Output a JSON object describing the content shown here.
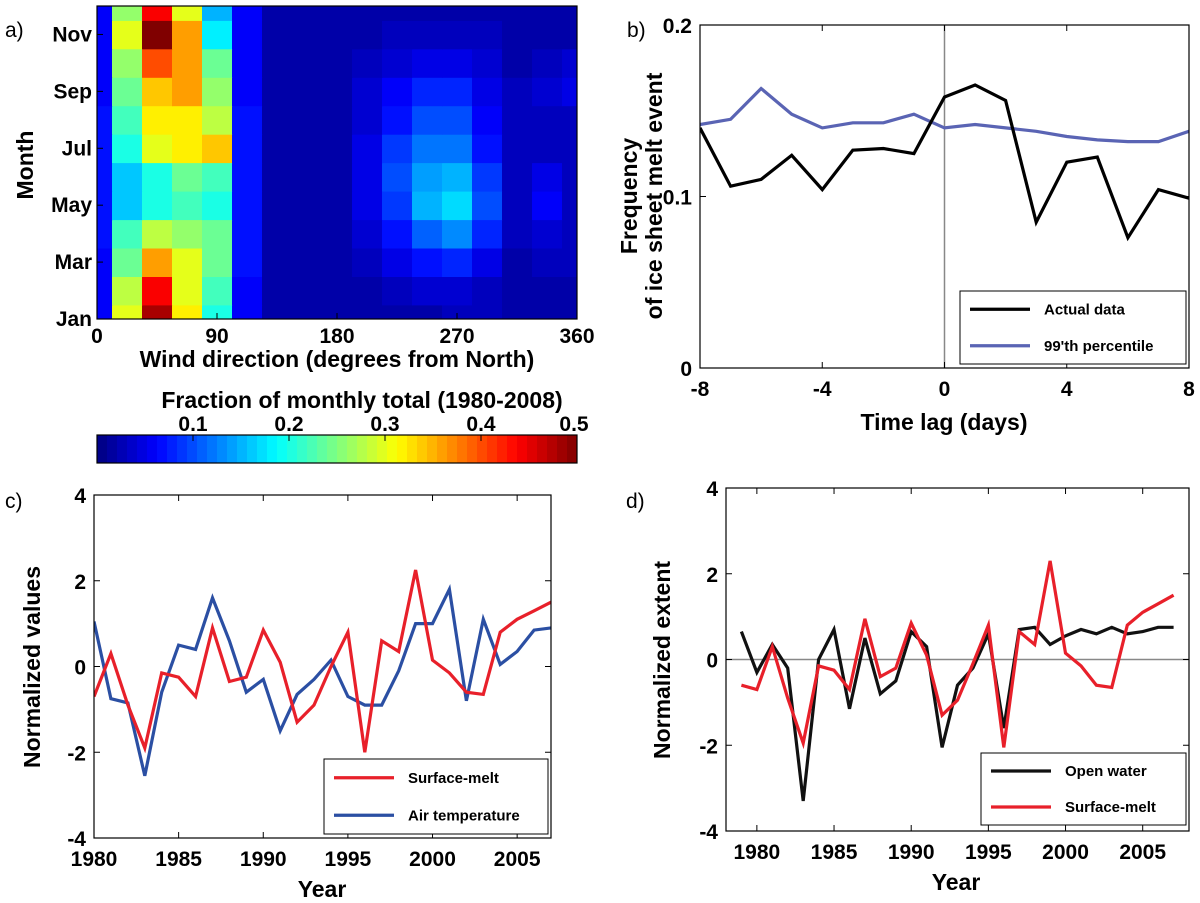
{
  "chart_data": [
    {
      "panel": "a)",
      "type": "heatmap",
      "xlabel": "Wind direction (degrees from North)",
      "ylabel": "Month",
      "xlim": [
        0,
        360
      ],
      "xticks": [
        "0",
        "90",
        "180",
        "270",
        "360"
      ],
      "yticks": [
        "Jan",
        "Mar",
        "May",
        "Jul",
        "Sep",
        "Nov"
      ],
      "colorbar": {
        "label": "Fraction of monthly total (1980-2008)",
        "range": [
          0,
          0.5
        ],
        "ticks": [
          "0.1",
          "0.2",
          "0.3",
          "0.4",
          "0.5"
        ]
      },
      "months": [
        "Jan",
        "Feb",
        "Mar",
        "Apr",
        "May",
        "Jun",
        "Jul",
        "Aug",
        "Sep",
        "Oct",
        "Nov",
        "Dec"
      ],
      "directions": [
        0,
        22.5,
        45,
        67.5,
        90,
        112.5,
        135,
        157.5,
        180,
        202.5,
        225,
        247.5,
        270,
        292.5,
        315,
        337.5,
        360
      ],
      "values": [
        [
          0.06,
          0.3,
          0.48,
          0.32,
          0.2,
          0.06,
          0.02,
          0.02,
          0.02,
          0.02,
          0.02,
          0.02,
          0.03,
          0.03,
          0.02,
          0.02,
          0.02
        ],
        [
          0.06,
          0.28,
          0.44,
          0.3,
          0.22,
          0.06,
          0.02,
          0.02,
          0.02,
          0.02,
          0.03,
          0.04,
          0.04,
          0.03,
          0.02,
          0.02,
          0.02
        ],
        [
          0.06,
          0.24,
          0.36,
          0.3,
          0.24,
          0.07,
          0.02,
          0.02,
          0.02,
          0.03,
          0.05,
          0.07,
          0.08,
          0.05,
          0.02,
          0.03,
          0.03
        ],
        [
          0.07,
          0.22,
          0.28,
          0.26,
          0.24,
          0.07,
          0.02,
          0.02,
          0.02,
          0.04,
          0.07,
          0.11,
          0.13,
          0.08,
          0.03,
          0.04,
          0.03
        ],
        [
          0.07,
          0.16,
          0.2,
          0.22,
          0.2,
          0.07,
          0.02,
          0.02,
          0.02,
          0.05,
          0.09,
          0.15,
          0.17,
          0.1,
          0.03,
          0.06,
          0.03
        ],
        [
          0.07,
          0.16,
          0.2,
          0.24,
          0.22,
          0.07,
          0.02,
          0.02,
          0.02,
          0.05,
          0.1,
          0.14,
          0.15,
          0.09,
          0.03,
          0.05,
          0.03
        ],
        [
          0.07,
          0.2,
          0.3,
          0.32,
          0.34,
          0.07,
          0.02,
          0.02,
          0.02,
          0.05,
          0.09,
          0.12,
          0.12,
          0.07,
          0.03,
          0.03,
          0.03
        ],
        [
          0.07,
          0.22,
          0.32,
          0.32,
          0.28,
          0.07,
          0.02,
          0.02,
          0.02,
          0.04,
          0.07,
          0.1,
          0.1,
          0.06,
          0.03,
          0.03,
          0.03
        ],
        [
          0.06,
          0.24,
          0.34,
          0.36,
          0.26,
          0.06,
          0.02,
          0.02,
          0.02,
          0.04,
          0.06,
          0.08,
          0.08,
          0.05,
          0.03,
          0.04,
          0.05
        ],
        [
          0.06,
          0.26,
          0.4,
          0.36,
          0.24,
          0.06,
          0.02,
          0.02,
          0.02,
          0.03,
          0.04,
          0.05,
          0.05,
          0.04,
          0.02,
          0.03,
          0.04
        ],
        [
          0.06,
          0.3,
          0.5,
          0.36,
          0.18,
          0.06,
          0.02,
          0.02,
          0.02,
          0.02,
          0.03,
          0.03,
          0.03,
          0.03,
          0.02,
          0.02,
          0.02
        ],
        [
          0.06,
          0.26,
          0.44,
          0.3,
          0.15,
          0.06,
          0.02,
          0.02,
          0.02,
          0.02,
          0.02,
          0.02,
          0.02,
          0.02,
          0.02,
          0.02,
          0.02
        ]
      ]
    },
    {
      "panel": "b)",
      "type": "line",
      "xlabel": "Time lag (days)",
      "ylabel": "Frequency of ice sheet melt event",
      "ylabel_lines": [
        "Frequency",
        "of ice sheet melt event"
      ],
      "xlim": [
        -8,
        8
      ],
      "ylim": [
        0,
        0.2
      ],
      "xticks": [
        "-8",
        "-4",
        "0",
        "4",
        "8"
      ],
      "yticks": [
        "0",
        "0.1",
        "0.2"
      ],
      "legend": "bottom-right",
      "x": [
        -8,
        -7,
        -6,
        -5,
        -4,
        -3,
        -2,
        -1,
        0,
        1,
        2,
        3,
        4,
        5,
        6,
        7,
        8
      ],
      "series": [
        {
          "name": "Actual data",
          "color": "#000000",
          "values": [
            0.14,
            0.106,
            0.11,
            0.124,
            0.104,
            0.127,
            0.128,
            0.125,
            0.158,
            0.165,
            0.156,
            0.085,
            0.12,
            0.123,
            0.076,
            0.104,
            0.099
          ]
        },
        {
          "name": "99'th percentile",
          "color": "#5a64b4",
          "values": [
            0.142,
            0.145,
            0.163,
            0.148,
            0.14,
            0.143,
            0.143,
            0.148,
            0.14,
            0.142,
            0.14,
            0.138,
            0.135,
            0.133,
            0.132,
            0.132,
            0.138
          ]
        }
      ]
    },
    {
      "panel": "c)",
      "type": "line",
      "xlabel": "Year",
      "ylabel": "Normalized values",
      "xlim": [
        1980,
        2007
      ],
      "ylim": [
        -4,
        4
      ],
      "xticks": [
        "1980",
        "1985",
        "1990",
        "1995",
        "2000",
        "2005"
      ],
      "yticks": [
        "-4",
        "-2",
        "0",
        "2",
        "4"
      ],
      "legend": "bottom-right",
      "x": [
        1980,
        1981,
        1982,
        1983,
        1984,
        1985,
        1986,
        1987,
        1988,
        1989,
        1990,
        1991,
        1992,
        1993,
        1994,
        1995,
        1996,
        1997,
        1998,
        1999,
        2000,
        2001,
        2002,
        2003,
        2004,
        2005,
        2006,
        2007
      ],
      "series": [
        {
          "name": "Surface-melt",
          "color": "#e8202a",
          "values": [
            -0.7,
            0.3,
            -0.9,
            -1.9,
            -0.15,
            -0.25,
            -0.7,
            0.9,
            -0.35,
            -0.25,
            0.85,
            0.1,
            -1.3,
            -0.9,
            0.0,
            0.8,
            -2.0,
            0.6,
            0.35,
            2.25,
            0.15,
            -0.15,
            -0.6,
            -0.65,
            0.8,
            1.1,
            1.3,
            1.5
          ]
        },
        {
          "name": "Air temperature",
          "color": "#2b4fa3",
          "values": [
            1.05,
            -0.75,
            -0.85,
            -2.55,
            -0.6,
            0.5,
            0.4,
            1.6,
            0.6,
            -0.6,
            -0.3,
            -1.5,
            -0.65,
            -0.3,
            0.15,
            -0.7,
            -0.9,
            -0.9,
            -0.1,
            1.0,
            1.0,
            1.8,
            -0.8,
            1.1,
            0.05,
            0.35,
            0.85,
            0.9
          ]
        }
      ]
    },
    {
      "panel": "d)",
      "type": "line",
      "xlabel": "Year",
      "ylabel": "Normalized extent",
      "xlim": [
        1978,
        2008
      ],
      "ylim": [
        -4,
        4
      ],
      "xticks": [
        "1980",
        "1985",
        "1990",
        "1995",
        "2000",
        "2005"
      ],
      "yticks": [
        "-4",
        "-2",
        "0",
        "2",
        "4"
      ],
      "legend": "bottom-right",
      "x": [
        1979,
        1980,
        1981,
        1982,
        1983,
        1984,
        1985,
        1986,
        1987,
        1988,
        1989,
        1990,
        1991,
        1992,
        1993,
        1994,
        1995,
        1996,
        1997,
        1998,
        1999,
        2000,
        2001,
        2002,
        2003,
        2004,
        2005,
        2006,
        2007
      ],
      "series": [
        {
          "name": "Open water",
          "color": "#111111",
          "values": [
            0.65,
            -0.3,
            0.35,
            -0.2,
            -3.3,
            0.0,
            0.7,
            -1.15,
            0.5,
            -0.8,
            -0.5,
            0.65,
            0.3,
            -2.05,
            -0.6,
            -0.2,
            0.6,
            -1.6,
            0.7,
            0.75,
            0.35,
            0.55,
            0.7,
            0.6,
            0.75,
            0.6,
            0.65,
            0.75,
            0.75
          ]
        },
        {
          "name": "Surface-melt",
          "color": "#e8202a",
          "values": [
            -0.6,
            -0.7,
            0.3,
            -0.9,
            -1.95,
            -0.15,
            -0.25,
            -0.7,
            0.95,
            -0.4,
            -0.2,
            0.85,
            0.1,
            -1.3,
            -0.95,
            -0.1,
            0.8,
            -2.05,
            0.65,
            0.35,
            2.3,
            0.15,
            -0.15,
            -0.6,
            -0.65,
            0.8,
            1.1,
            1.3,
            1.5
          ]
        }
      ]
    }
  ]
}
